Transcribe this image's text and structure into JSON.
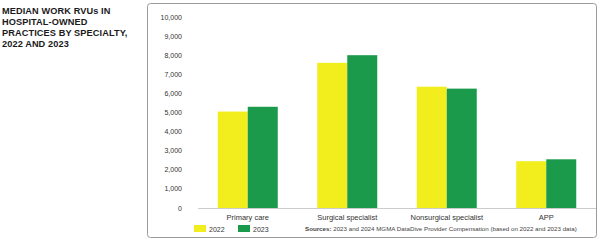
{
  "chart_data": {
    "type": "bar",
    "title": "MEDIAN WORK RVUs IN HOSPITAL-OWNED PRACTICES BY SPECIALTY, 2022 AND 2023",
    "categories": [
      "Primary care",
      "Surgical specialist",
      "Nonsurgical specialist",
      "APP"
    ],
    "series": [
      {
        "name": "2022",
        "color": "#f2ee1d",
        "values": [
          5050,
          7600,
          6350,
          2450
        ]
      },
      {
        "name": "2023",
        "color": "#1b9a4b",
        "values": [
          5300,
          8000,
          6250,
          2550
        ]
      }
    ],
    "ylim": [
      0,
      10000
    ],
    "yticks": [
      0,
      {
        "value": 1000,
        "label": "1,000"
      },
      {
        "value": 2000,
        "label": "2,000"
      },
      {
        "value": 3000,
        "label": "3,000"
      },
      {
        "value": 4000,
        "label": "4,000"
      },
      {
        "value": 5000,
        "label": "5,000"
      },
      {
        "value": 6000,
        "label": "6,000"
      },
      {
        "value": 7000,
        "label": "7,000"
      },
      {
        "value": 8000,
        "label": "8,000"
      },
      {
        "value": 9000,
        "label": "9,000"
      },
      {
        "value": 10000,
        "label": "10,000"
      }
    ],
    "grid": false,
    "legend": "bottom-left",
    "annotations": [
      "Sources:",
      "2023 and 2024 MGMA DataDive Provider Compensation (based on 2022 and 2023 data)"
    ]
  }
}
